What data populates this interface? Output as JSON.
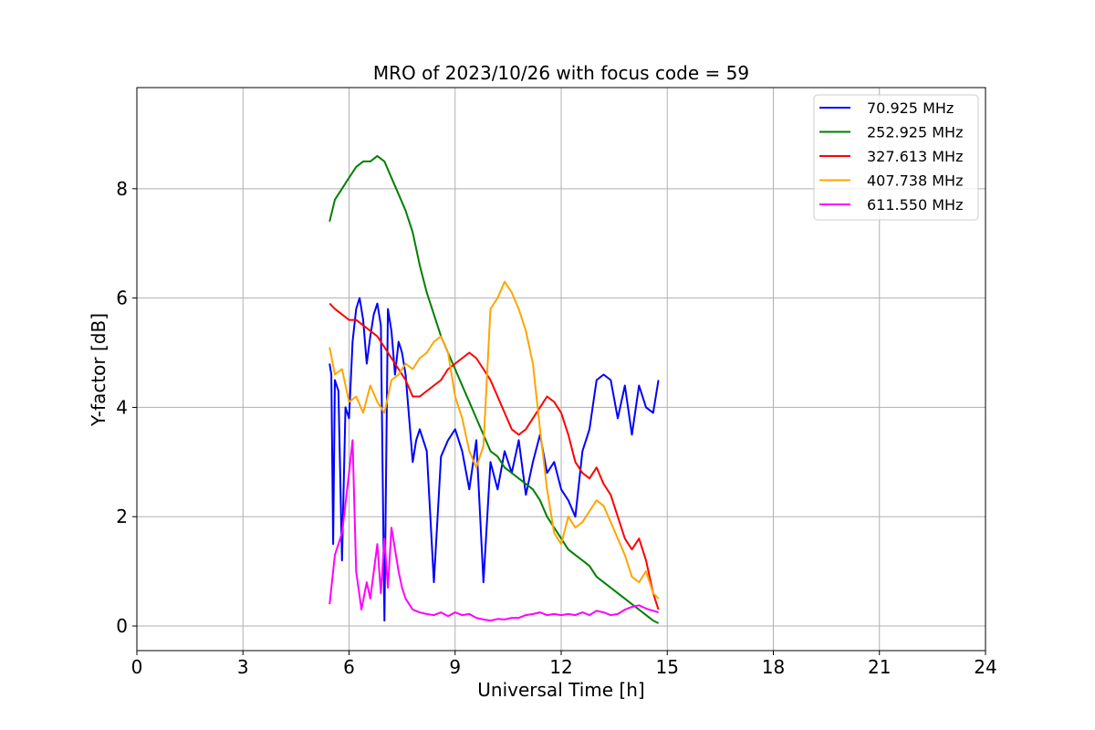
{
  "chart_data": {
    "type": "line",
    "title": "MRO of 2023/10/26 with focus code = 59",
    "xlabel": "Universal Time [h]",
    "ylabel": "Y-factor [dB]",
    "xlim": [
      0,
      24
    ],
    "ylim": [
      -0.45,
      9.85
    ],
    "xticks": [
      0,
      3,
      6,
      9,
      12,
      15,
      18,
      21,
      24
    ],
    "yticks": [
      0,
      2,
      4,
      6,
      8
    ],
    "grid": true,
    "legend_position": "top-right",
    "series": [
      {
        "name": " 70.925 MHz",
        "color": "#0000ff",
        "x": [
          5.45,
          5.5,
          5.55,
          5.6,
          5.7,
          5.8,
          5.9,
          6.0,
          6.1,
          6.2,
          6.3,
          6.4,
          6.5,
          6.6,
          6.7,
          6.8,
          6.9,
          7.0,
          7.1,
          7.2,
          7.3,
          7.4,
          7.5,
          7.6,
          7.7,
          7.8,
          7.9,
          8.0,
          8.2,
          8.4,
          8.6,
          8.8,
          9.0,
          9.2,
          9.4,
          9.6,
          9.8,
          10.0,
          10.2,
          10.4,
          10.6,
          10.8,
          11.0,
          11.2,
          11.4,
          11.6,
          11.8,
          12.0,
          12.2,
          12.4,
          12.6,
          12.8,
          13.0,
          13.2,
          13.4,
          13.6,
          13.8,
          14.0,
          14.2,
          14.4,
          14.6,
          14.75
        ],
        "y": [
          4.8,
          4.6,
          1.5,
          4.5,
          4.3,
          1.2,
          4.0,
          3.8,
          5.2,
          5.8,
          6.0,
          5.6,
          4.8,
          5.3,
          5.7,
          5.9,
          5.5,
          0.1,
          5.8,
          5.4,
          4.6,
          5.2,
          5.0,
          4.6,
          3.8,
          3.0,
          3.4,
          3.6,
          3.2,
          0.8,
          3.1,
          3.4,
          3.6,
          3.2,
          2.5,
          3.4,
          0.8,
          3.0,
          2.5,
          3.2,
          2.8,
          3.4,
          2.4,
          3.0,
          3.5,
          2.8,
          3.0,
          2.5,
          2.3,
          2.0,
          3.2,
          3.6,
          4.5,
          4.6,
          4.5,
          3.8,
          4.4,
          3.5,
          4.4,
          4.0,
          3.9,
          4.5
        ]
      },
      {
        "name": "252.925 MHz",
        "color": "#008000",
        "x": [
          5.45,
          5.6,
          5.8,
          6.0,
          6.2,
          6.4,
          6.6,
          6.8,
          7.0,
          7.2,
          7.4,
          7.6,
          7.8,
          8.0,
          8.2,
          8.4,
          8.6,
          8.8,
          9.0,
          9.2,
          9.4,
          9.6,
          9.8,
          10.0,
          10.2,
          10.4,
          10.6,
          10.8,
          11.0,
          11.2,
          11.4,
          11.6,
          11.8,
          12.0,
          12.2,
          12.4,
          12.6,
          12.8,
          13.0,
          13.2,
          13.4,
          13.6,
          13.8,
          14.0,
          14.2,
          14.4,
          14.6,
          14.75
        ],
        "y": [
          7.4,
          7.8,
          8.0,
          8.2,
          8.4,
          8.5,
          8.5,
          8.6,
          8.5,
          8.2,
          7.9,
          7.6,
          7.2,
          6.6,
          6.1,
          5.7,
          5.3,
          5.0,
          4.7,
          4.4,
          4.1,
          3.8,
          3.5,
          3.2,
          3.1,
          2.9,
          2.8,
          2.7,
          2.6,
          2.5,
          2.3,
          2.0,
          1.8,
          1.6,
          1.4,
          1.3,
          1.2,
          1.1,
          0.9,
          0.8,
          0.7,
          0.6,
          0.5,
          0.4,
          0.3,
          0.2,
          0.1,
          0.05
        ]
      },
      {
        "name": "327.613 MHz",
        "color": "#ff0000",
        "x": [
          5.45,
          5.6,
          5.8,
          6.0,
          6.2,
          6.4,
          6.6,
          6.8,
          7.0,
          7.2,
          7.4,
          7.6,
          7.8,
          8.0,
          8.2,
          8.4,
          8.6,
          8.8,
          9.0,
          9.2,
          9.4,
          9.6,
          9.8,
          10.0,
          10.2,
          10.4,
          10.6,
          10.8,
          11.0,
          11.2,
          11.4,
          11.6,
          11.8,
          12.0,
          12.2,
          12.4,
          12.6,
          12.8,
          13.0,
          13.2,
          13.4,
          13.6,
          13.8,
          14.0,
          14.2,
          14.4,
          14.6,
          14.75
        ],
        "y": [
          5.9,
          5.8,
          5.7,
          5.6,
          5.6,
          5.5,
          5.4,
          5.3,
          5.1,
          4.9,
          4.7,
          4.5,
          4.2,
          4.2,
          4.3,
          4.4,
          4.5,
          4.7,
          4.8,
          4.9,
          5.0,
          4.9,
          4.7,
          4.5,
          4.2,
          3.9,
          3.6,
          3.5,
          3.6,
          3.8,
          4.0,
          4.2,
          4.1,
          3.9,
          3.5,
          3.0,
          2.8,
          2.7,
          2.9,
          2.6,
          2.4,
          2.0,
          1.6,
          1.4,
          1.6,
          1.2,
          0.6,
          0.3
        ]
      },
      {
        "name": "407.738 MHz",
        "color": "#ffa500",
        "x": [
          5.45,
          5.6,
          5.8,
          6.0,
          6.2,
          6.4,
          6.6,
          6.8,
          7.0,
          7.2,
          7.4,
          7.6,
          7.8,
          8.0,
          8.2,
          8.4,
          8.6,
          8.8,
          9.0,
          9.2,
          9.4,
          9.6,
          9.8,
          10.0,
          10.2,
          10.4,
          10.6,
          10.8,
          11.0,
          11.2,
          11.4,
          11.6,
          11.8,
          12.0,
          12.2,
          12.4,
          12.6,
          12.8,
          13.0,
          13.2,
          13.4,
          13.6,
          13.8,
          14.0,
          14.2,
          14.4,
          14.6,
          14.75
        ],
        "y": [
          5.1,
          4.6,
          4.7,
          4.1,
          4.2,
          3.9,
          4.4,
          4.1,
          3.9,
          4.5,
          4.6,
          4.8,
          4.7,
          4.9,
          5.0,
          5.2,
          5.3,
          5.0,
          4.2,
          3.8,
          3.2,
          2.9,
          3.3,
          5.8,
          6.0,
          6.3,
          6.1,
          5.8,
          5.4,
          4.8,
          3.6,
          2.5,
          1.7,
          1.5,
          2.0,
          1.8,
          1.9,
          2.1,
          2.3,
          2.2,
          1.9,
          1.6,
          1.3,
          0.9,
          0.8,
          1.0,
          0.6,
          0.5
        ]
      },
      {
        "name": "611.550 MHz",
        "color": "#ff00ff",
        "x": [
          5.45,
          5.6,
          5.8,
          6.0,
          6.1,
          6.2,
          6.35,
          6.5,
          6.6,
          6.8,
          6.9,
          7.0,
          7.1,
          7.2,
          7.3,
          7.4,
          7.5,
          7.6,
          7.8,
          8.0,
          8.2,
          8.4,
          8.6,
          8.8,
          9.0,
          9.2,
          9.4,
          9.6,
          9.8,
          10.0,
          10.2,
          10.4,
          10.6,
          10.8,
          11.0,
          11.2,
          11.4,
          11.6,
          11.8,
          12.0,
          12.2,
          12.4,
          12.6,
          12.8,
          13.0,
          13.2,
          13.4,
          13.6,
          13.8,
          14.0,
          14.2,
          14.4,
          14.6,
          14.75
        ],
        "y": [
          0.4,
          1.3,
          1.7,
          2.8,
          3.4,
          1.0,
          0.3,
          0.8,
          0.5,
          1.5,
          0.6,
          1.6,
          0.7,
          1.8,
          1.4,
          1.0,
          0.7,
          0.5,
          0.3,
          0.25,
          0.22,
          0.2,
          0.25,
          0.18,
          0.25,
          0.2,
          0.22,
          0.15,
          0.12,
          0.1,
          0.13,
          0.12,
          0.15,
          0.15,
          0.2,
          0.22,
          0.25,
          0.2,
          0.22,
          0.2,
          0.22,
          0.2,
          0.25,
          0.2,
          0.28,
          0.25,
          0.2,
          0.22,
          0.3,
          0.35,
          0.38,
          0.32,
          0.28,
          0.25
        ]
      }
    ]
  }
}
